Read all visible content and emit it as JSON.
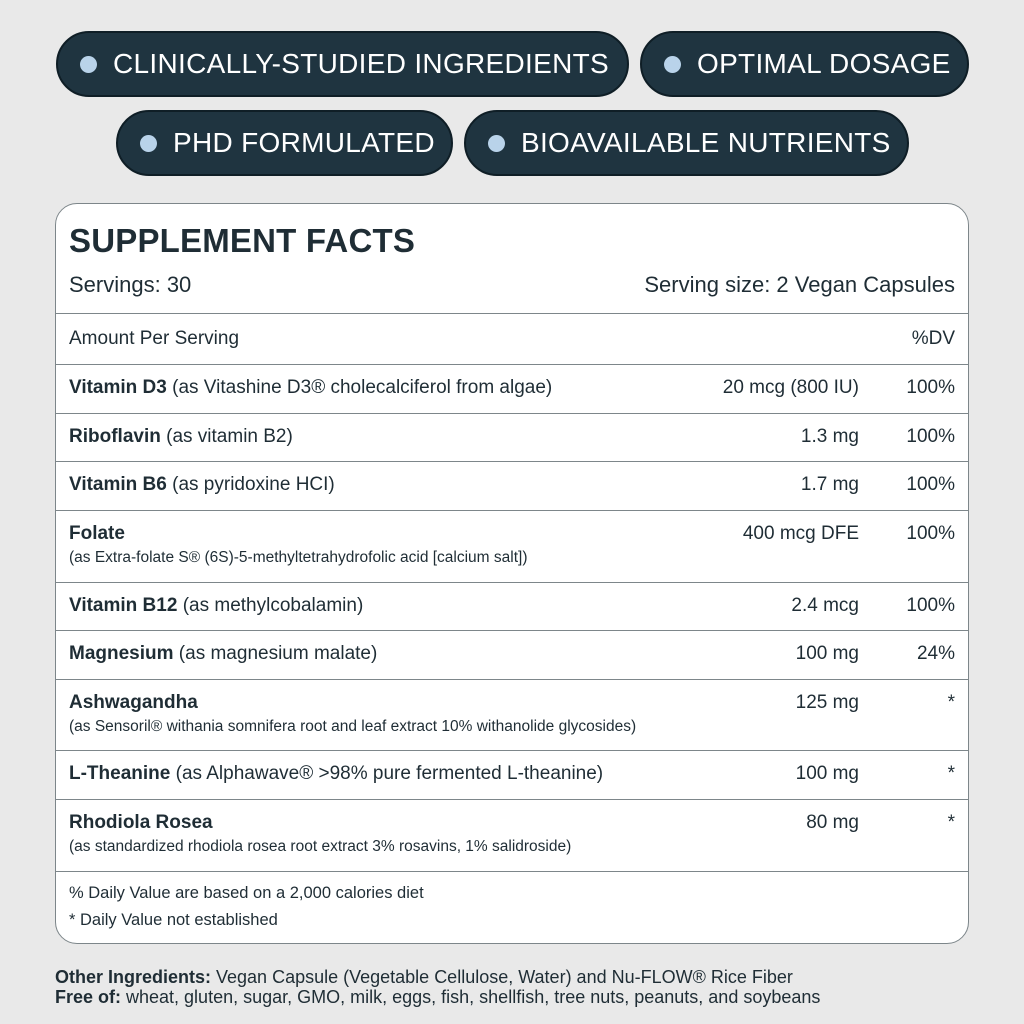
{
  "badges": [
    "CLINICALLY-STUDIED INGREDIENTS",
    "OPTIMAL DOSAGE",
    "PHD FORMULATED",
    "BIOAVAILABLE NUTRIENTS"
  ],
  "colors": {
    "background": "#e9e9e9",
    "badge": "#1f3440",
    "badge_dot": "#b9d3ea",
    "text": "#1f2d35"
  },
  "facts": {
    "title": "SUPPLEMENT FACTS",
    "servings": "Servings: 30",
    "serving_size": "Serving size: 2 Vegan Capsules",
    "header_amount": "Amount Per Serving",
    "header_dv": "%DV",
    "rows": [
      {
        "name": "Vitamin D3",
        "desc": " (as Vitashine D3® cholecalciferol from algae)",
        "amount": "20 mcg (800 IU)",
        "dv": "100%"
      },
      {
        "name": "Riboflavin",
        "desc": " (as vitamin B2)",
        "amount": "1.3 mg",
        "dv": "100%"
      },
      {
        "name": "Vitamin B6",
        "desc": " (as pyridoxine HCI)",
        "amount": "1.7 mg",
        "dv": "100%"
      },
      {
        "name": "Folate",
        "sub": "(as Extra-folate S® (6S)-5-methyltetrahydrofolic acid [calcium salt])",
        "amount": "400 mcg DFE",
        "dv": "100%"
      },
      {
        "name": "Vitamin B12",
        "desc": " (as methylcobalamin)",
        "amount": "2.4 mcg",
        "dv": "100%"
      },
      {
        "name": "Magnesium",
        "desc": " (as magnesium malate)",
        "amount": "100 mg",
        "dv": "24%"
      },
      {
        "name": "Ashwagandha",
        "sub": "(as Sensoril® withania somnifera root and leaf extract 10% withanolide glycosides)",
        "amount": "125 mg",
        "dv": "*"
      },
      {
        "name": "L-Theanine",
        "desc": " (as Alphawave® >98% pure fermented L-theanine)",
        "amount": "100 mg",
        "dv": "*"
      },
      {
        "name": "Rhodiola Rosea",
        "sub": "(as standardized rhodiola rosea root extract 3% rosavins, 1% salidroside)",
        "amount": "80 mg",
        "dv": "*"
      }
    ],
    "footnote1": "% Daily Value are based on a 2,000 calories diet",
    "footnote2": "* Daily Value not established"
  },
  "other": {
    "label1": "Other Ingredients:",
    "text1": " Vegan Capsule (Vegetable Cellulose, Water) and Nu-FLOW® Rice Fiber",
    "label2": "Free of:",
    "text2": " wheat, gluten, sugar, GMO, milk, eggs, fish, shellfish, tree nuts, peanuts, and soybeans"
  }
}
